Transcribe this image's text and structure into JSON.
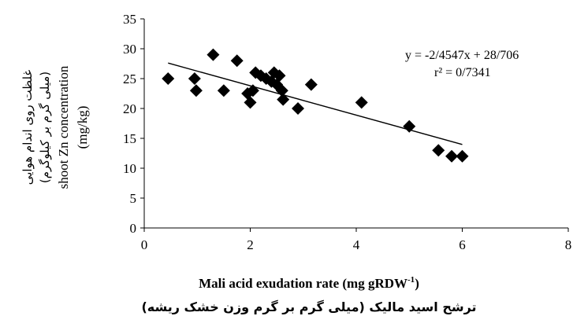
{
  "chart_data": {
    "type": "scatter",
    "xlim": [
      0,
      8
    ],
    "ylim": [
      0,
      35
    ],
    "x_ticks": [
      "0",
      "2",
      "4",
      "6",
      "8"
    ],
    "y_ticks": [
      "0",
      "5",
      "10",
      "15",
      "20",
      "25",
      "30",
      "35"
    ],
    "ylabel_lines": [
      "غلظت روی اندام هوایی",
      "(میلی گرم بر کیلوگرم)",
      "shoot Zn concentration",
      "(mg/kg)"
    ],
    "xlabel": "Mali acid exudation rate (mg gRDW",
    "xlabel_sup": "-1",
    "xlabel_close": ")",
    "xlabel_fa": "ترشح اسید مالیک (میلی گرم بر گرم وزن خشک ریشه)",
    "equation": "y = -2/4547x + 28/706",
    "r_squared": "r² = 0/7341",
    "trendline": {
      "slope": -2.4547,
      "intercept": 28.706,
      "x_from": 0.45,
      "x_to": 6.0
    },
    "points": [
      {
        "x": 0.45,
        "y": 25
      },
      {
        "x": 0.95,
        "y": 25
      },
      {
        "x": 0.98,
        "y": 23
      },
      {
        "x": 1.3,
        "y": 29
      },
      {
        "x": 1.5,
        "y": 23
      },
      {
        "x": 1.75,
        "y": 28
      },
      {
        "x": 1.95,
        "y": 22.5
      },
      {
        "x": 2.0,
        "y": 21
      },
      {
        "x": 2.05,
        "y": 23
      },
      {
        "x": 2.1,
        "y": 26
      },
      {
        "x": 2.2,
        "y": 25.5
      },
      {
        "x": 2.3,
        "y": 25
      },
      {
        "x": 2.4,
        "y": 24.5
      },
      {
        "x": 2.45,
        "y": 26
      },
      {
        "x": 2.5,
        "y": 24
      },
      {
        "x": 2.55,
        "y": 25.5
      },
      {
        "x": 2.6,
        "y": 23
      },
      {
        "x": 2.62,
        "y": 21.5
      },
      {
        "x": 2.9,
        "y": 20
      },
      {
        "x": 3.15,
        "y": 24
      },
      {
        "x": 4.1,
        "y": 21
      },
      {
        "x": 5.0,
        "y": 17
      },
      {
        "x": 5.55,
        "y": 13
      },
      {
        "x": 5.8,
        "y": 12
      },
      {
        "x": 6.0,
        "y": 12
      }
    ]
  }
}
